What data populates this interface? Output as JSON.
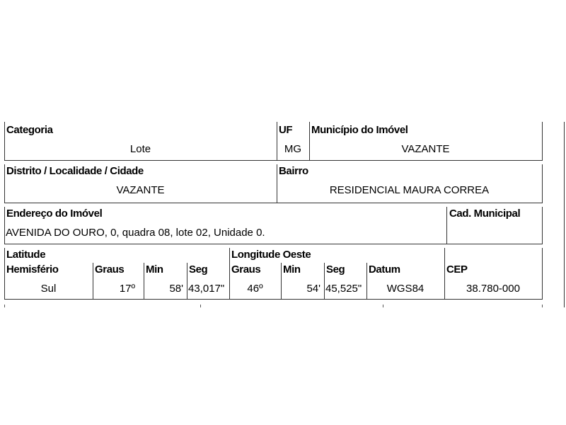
{
  "row1": {
    "categoria": {
      "label": "Categoria",
      "value": "Lote"
    },
    "uf": {
      "label": "UF",
      "value": "MG"
    },
    "municipio": {
      "label": "Município do Imóvel",
      "value": "VAZANTE"
    }
  },
  "row2": {
    "distrito": {
      "label": "Distrito / Localidade / Cidade",
      "value": "VAZANTE"
    },
    "bairro": {
      "label": "Bairro",
      "value": "RESIDENCIAL MAURA CORREA"
    }
  },
  "row3": {
    "endereco": {
      "label": "Endereço do Imóvel",
      "value": "AVENIDA DO OURO, 0, quadra 08, lote 02, Unidade 0."
    },
    "cad_municipal": {
      "label": "Cad. Municipal",
      "value": ""
    }
  },
  "row4": {
    "latitude_label": "Latitude",
    "longitude_label": "Longitude Oeste",
    "columns": [
      {
        "label": "Hemisfério",
        "value": "Sul"
      },
      {
        "label": "Graus",
        "value": "17º"
      },
      {
        "label": "Min",
        "value": "58'"
      },
      {
        "label": "Seg",
        "value": "43,017\""
      },
      {
        "label": "Graus",
        "value": "46º"
      },
      {
        "label": "Min",
        "value": "54'"
      },
      {
        "label": "Seg",
        "value": "45,525\""
      },
      {
        "label": "Datum",
        "value": "WGS84"
      },
      {
        "label": "CEP",
        "value": "38.780-000"
      }
    ]
  }
}
